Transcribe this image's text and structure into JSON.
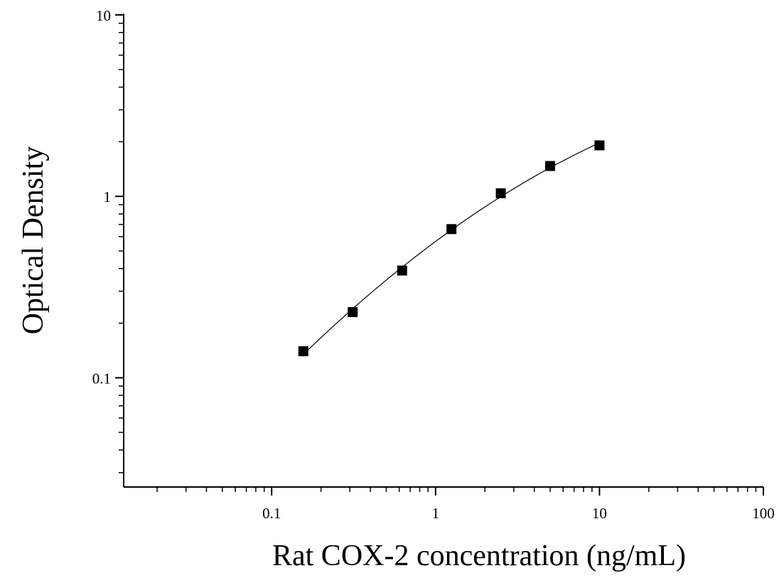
{
  "chart_data": {
    "type": "scatter",
    "title": "",
    "xlabel": "Rat COX-2 concentration (ng/mL)",
    "ylabel": "Optical Density",
    "x_scale": "log",
    "y_scale": "log",
    "xlim": [
      0.0125,
      100
    ],
    "ylim": [
      0.025,
      10
    ],
    "x_ticks": [
      {
        "value": 0.1,
        "label": "0.1"
      },
      {
        "value": 1,
        "label": "1"
      },
      {
        "value": 10,
        "label": "10"
      },
      {
        "value": 100,
        "label": "100"
      }
    ],
    "y_ticks": [
      {
        "value": 0.1,
        "label": "0.1"
      },
      {
        "value": 1,
        "label": "1"
      },
      {
        "value": 10,
        "label": "10"
      }
    ],
    "grid": false,
    "fit_curve": true,
    "marker": "square",
    "color": "#000000",
    "x": [
      0.156,
      0.312,
      0.625,
      1.25,
      2.5,
      5,
      10
    ],
    "y": [
      0.14,
      0.23,
      0.39,
      0.66,
      1.04,
      1.47,
      1.91
    ]
  }
}
